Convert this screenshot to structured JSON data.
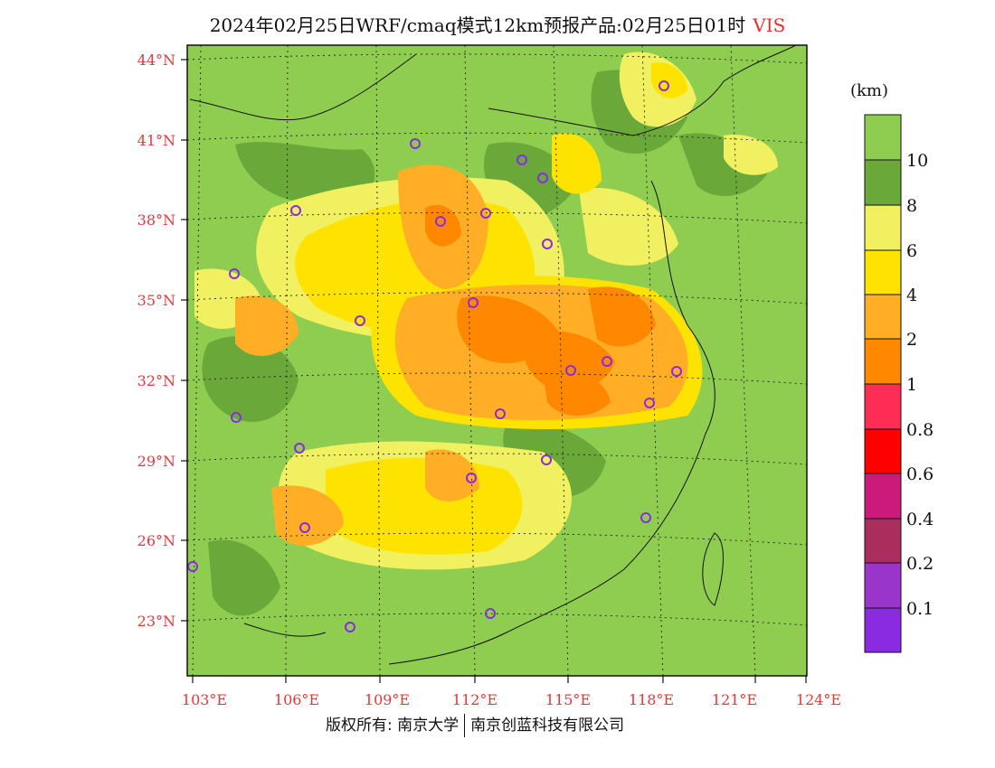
{
  "title": {
    "main": "2024年02月25日WRF/cmaq模式12km预报产品:02月25日01时",
    "variable": "VIS"
  },
  "map": {
    "lat_labels": [
      "44°N",
      "41°N",
      "38°N",
      "35°N",
      "32°N",
      "29°N",
      "26°N",
      "23°N"
    ],
    "lon_labels": [
      "103°E",
      "106°E",
      "109°E",
      "112°E",
      "115°E",
      "118°E",
      "121°E",
      "124°E"
    ],
    "label_color": "#e03a3a",
    "grid": "dotted",
    "background_class": "10+ km (green)",
    "station_marker_color": "#8a2be2"
  },
  "colorbar": {
    "unit": "(km)",
    "labels": [
      "10",
      "8",
      "6",
      "4",
      "2",
      "1",
      "0.8",
      "0.6",
      "0.4",
      "0.2",
      "0.1"
    ],
    "colors": [
      "#8fcd50",
      "#6aa83a",
      "#f0f060",
      "#ffe300",
      "#ffae25",
      "#ff8800",
      "#ff2d55",
      "#ff0000",
      "#cc1a7a",
      "#aa2d5e",
      "#9a35cc",
      "#8a2be2"
    ]
  },
  "footer": {
    "left": "版权所有: 南京大学",
    "right": "南京创蓝科技有限公司"
  }
}
